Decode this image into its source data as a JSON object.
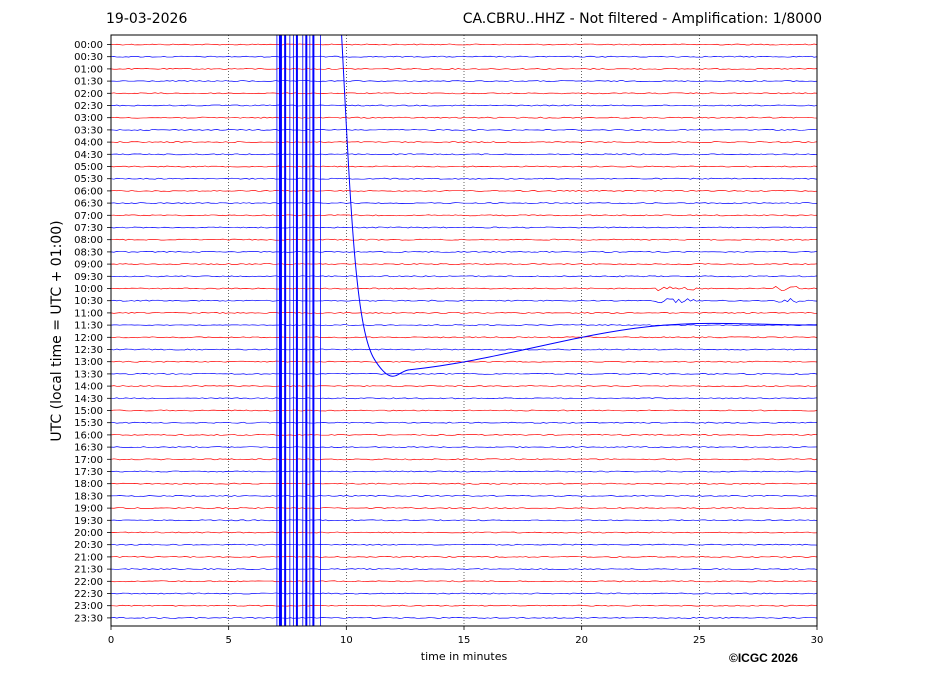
{
  "header": {
    "date": "19-03-2026",
    "title": "CA.CBRU..HHZ - Not filtered - Amplification: 1/8000"
  },
  "footer": {
    "copyright": "©ICGC 2026"
  },
  "colors": {
    "trace_even": "#ff0000",
    "trace_odd": "#0000ff",
    "grid": "#000000"
  },
  "chart_data": {
    "type": "line",
    "title": "CA.CBRU..HHZ - Not filtered - Amplification: 1/8000",
    "xlabel": "time in minutes",
    "ylabel": "UTC (local time = UTC + 01:00)",
    "xlim": [
      0,
      30
    ],
    "x_ticks": [
      0,
      5,
      10,
      15,
      20,
      25,
      30
    ],
    "grid": "vertical dotted lines at x ticks",
    "trace_colors": "alternating red and blue",
    "rows": [
      "00:00",
      "00:30",
      "01:00",
      "01:30",
      "02:00",
      "02:30",
      "03:00",
      "03:30",
      "04:00",
      "04:30",
      "05:00",
      "05:30",
      "06:00",
      "06:30",
      "07:00",
      "07:30",
      "08:00",
      "08:30",
      "09:00",
      "09:30",
      "10:00",
      "10:30",
      "11:00",
      "11:30",
      "12:00",
      "12:30",
      "13:00",
      "13:30",
      "14:00",
      "14:30",
      "15:00",
      "15:30",
      "16:00",
      "16:30",
      "17:00",
      "17:30",
      "18:00",
      "18:30",
      "19:00",
      "19:30",
      "20:00",
      "20:30",
      "21:00",
      "21:30",
      "22:00",
      "22:30",
      "23:00",
      "23:30"
    ],
    "events": [
      {
        "description": "large saturated spikes spanning all rows",
        "x_minutes": [
          7.2,
          7.4,
          7.9,
          8.3,
          8.6
        ]
      },
      {
        "description": "long-period excursion starting near x=9.8 min, descending to about 13:00 row near x=12.7 min, then recovering toward the 11:30 row level",
        "x_minutes": [
          9.8,
          12.7,
          30
        ]
      },
      {
        "description": "bursts of noise on 10:00 and 10:30 rows",
        "x_minutes": [
          23.3,
          24.3,
          28.6
        ]
      }
    ]
  }
}
